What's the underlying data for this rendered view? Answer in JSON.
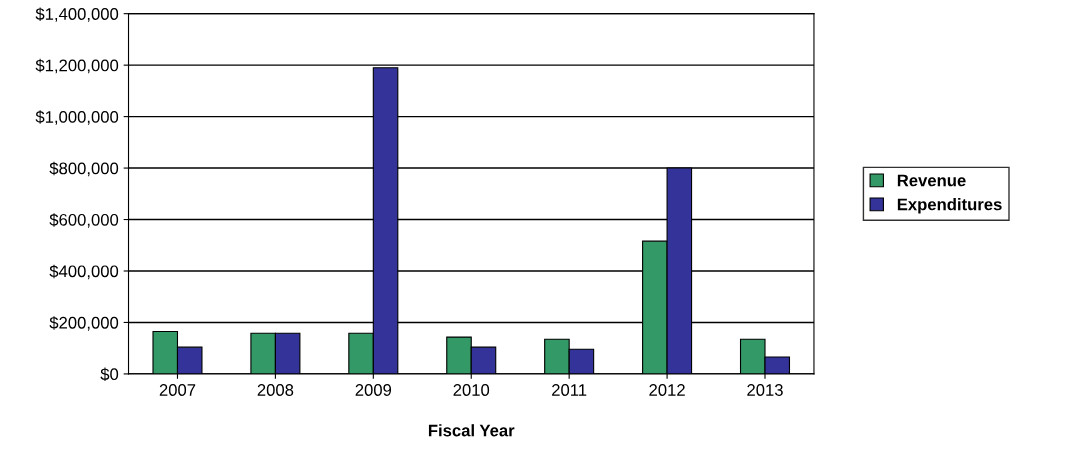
{
  "chart_data": {
    "type": "bar",
    "xlabel": "Fiscal Year",
    "categories": [
      "2007",
      "2008",
      "2009",
      "2010",
      "2011",
      "2012",
      "2013"
    ],
    "series": [
      {
        "name": "Revenue",
        "color": "#339966",
        "values": [
          165000,
          158000,
          158000,
          143000,
          135000,
          516000,
          135000
        ]
      },
      {
        "name": "Expenditures",
        "color": "#333399",
        "values": [
          104000,
          158000,
          1190000,
          104000,
          96000,
          800000,
          66000
        ]
      }
    ],
    "ylim": [
      0,
      1400000
    ],
    "yticks": [
      {
        "value": 0,
        "label": "$0"
      },
      {
        "value": 200000,
        "label": "$200,000"
      },
      {
        "value": 400000,
        "label": "$400,000"
      },
      {
        "value": 600000,
        "label": "$600,000"
      },
      {
        "value": 800000,
        "label": "$800,000"
      },
      {
        "value": 1000000,
        "label": "$1,000,000"
      },
      {
        "value": 1200000,
        "label": "$1,200,000"
      },
      {
        "value": 1400000,
        "label": "$1,400,000"
      }
    ],
    "grid": "y",
    "legend": "right"
  }
}
